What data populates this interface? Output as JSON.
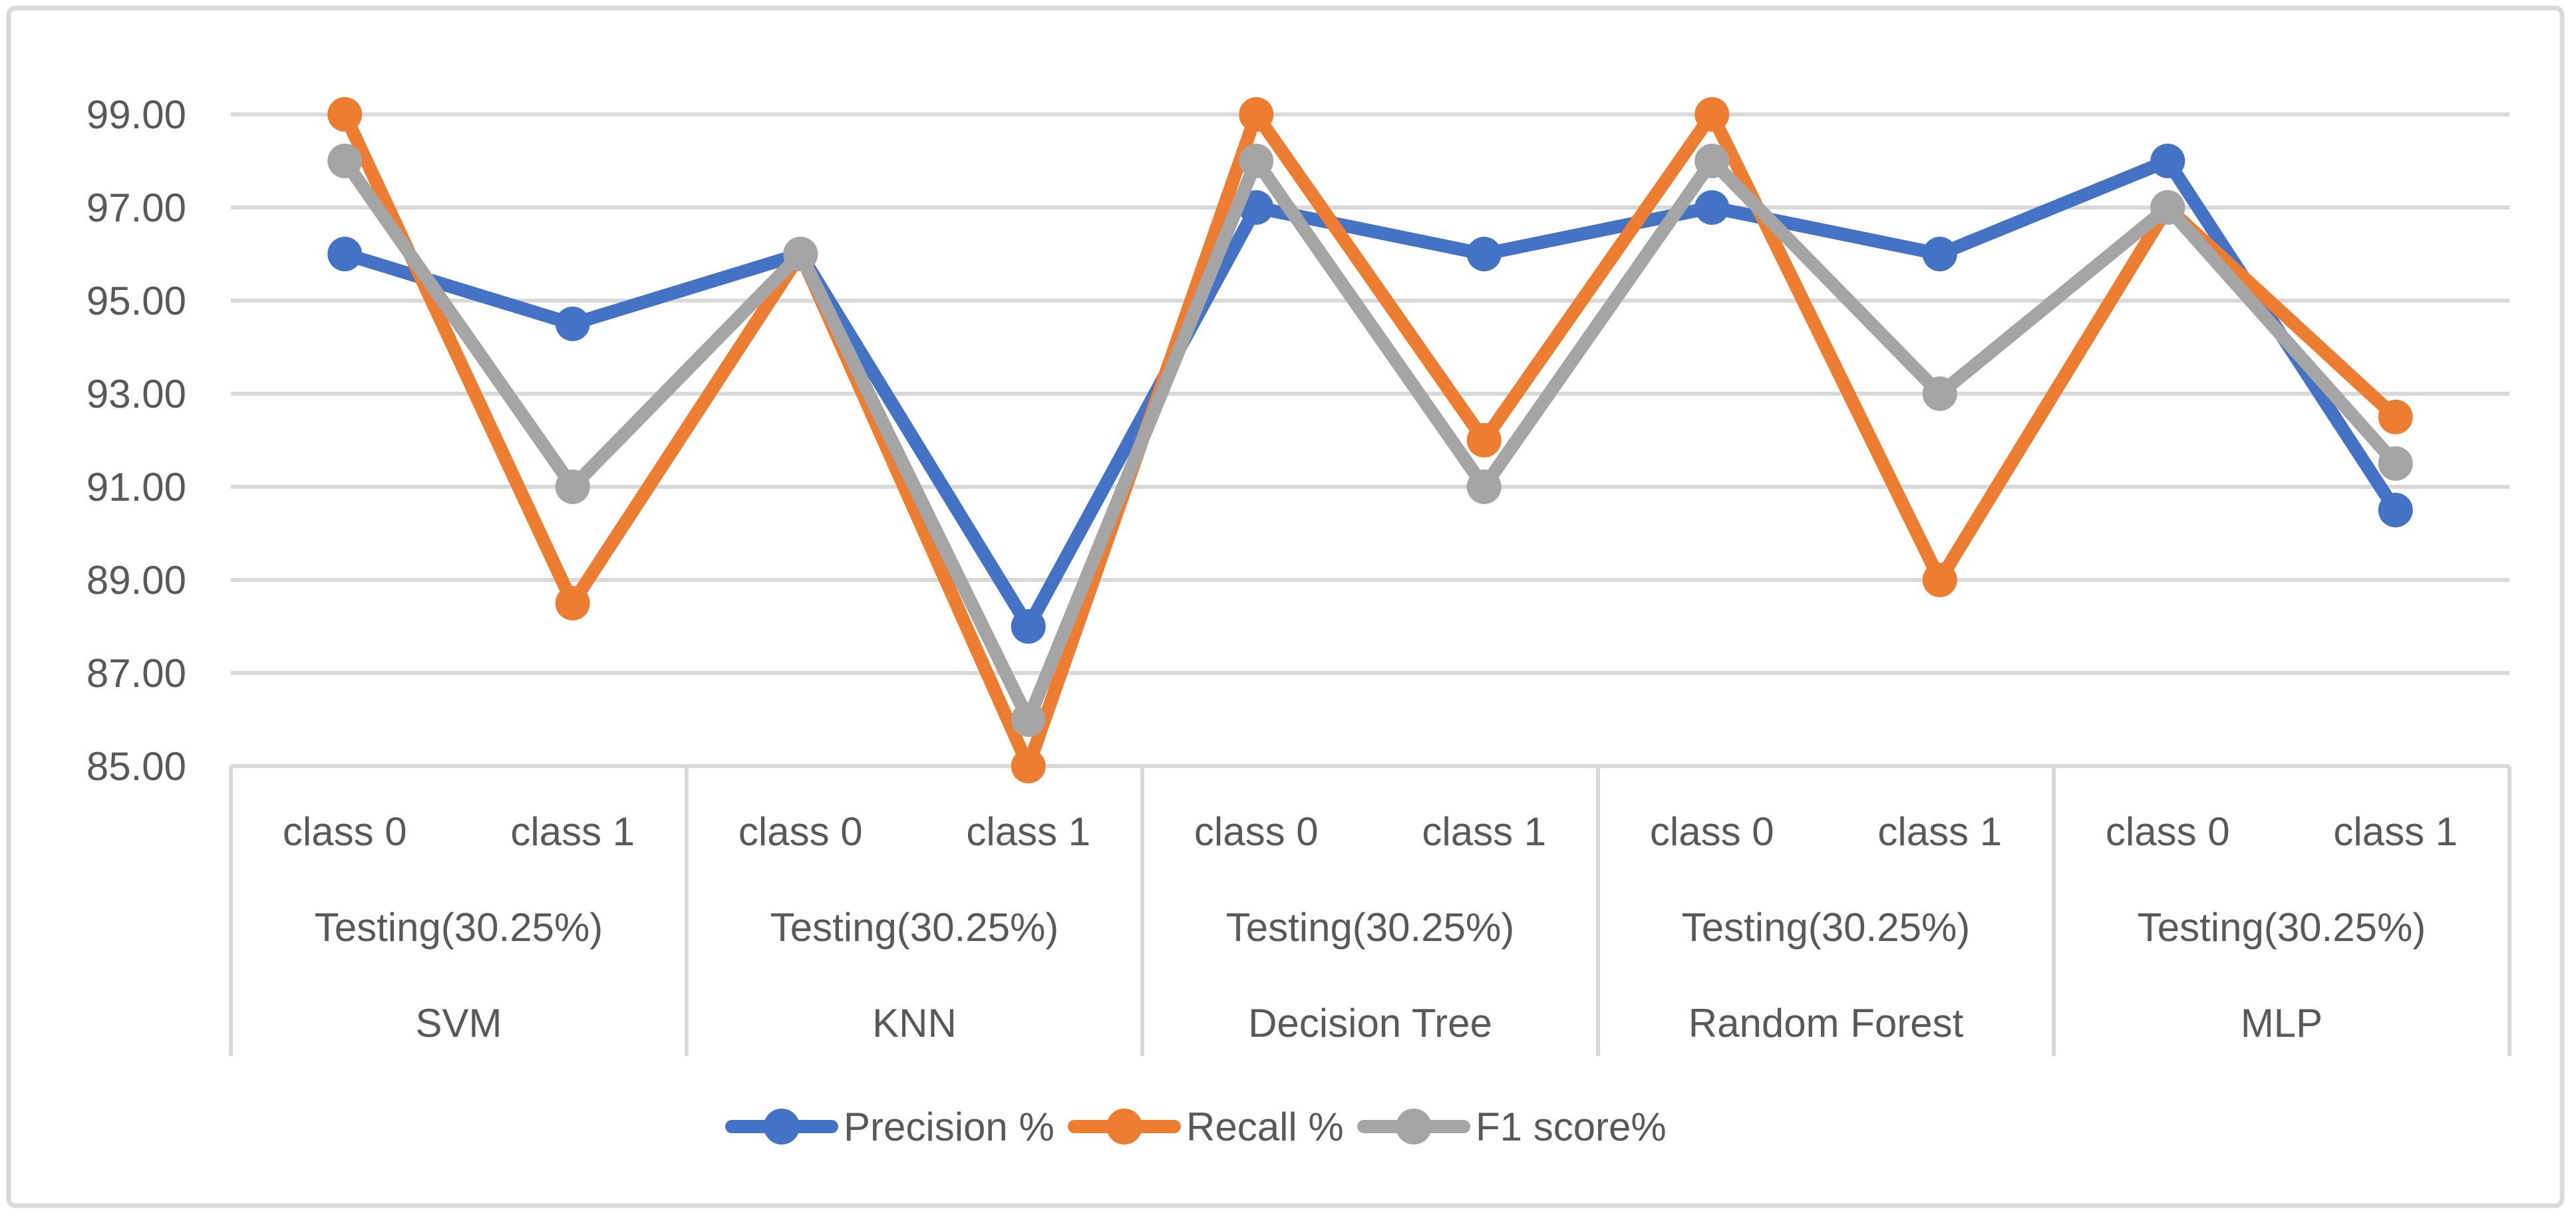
{
  "chart_data": {
    "type": "line",
    "title": "",
    "xlabel": "",
    "ylabel": "",
    "grid": true,
    "legend_position": "bottom",
    "y_axis": {
      "min": 85,
      "max": 99,
      "step": 2,
      "tick_labels": [
        "85.00",
        "87.00",
        "89.00",
        "91.00",
        "93.00",
        "95.00",
        "97.00",
        "99.00"
      ]
    },
    "x_axis": {
      "class_labels": [
        "class 0",
        "class 1"
      ],
      "groups": [
        {
          "label": "SVM",
          "sublabel": "Testing(30.25%)"
        },
        {
          "label": "KNN",
          "sublabel": "Testing(30.25%)"
        },
        {
          "label": "Decision Tree",
          "sublabel": "Testing(30.25%)"
        },
        {
          "label": "Random Forest",
          "sublabel": "Testing(30.25%)"
        },
        {
          "label": "MLP",
          "sublabel": "Testing(30.25%)"
        }
      ]
    },
    "categories": [
      "SVM class 0",
      "SVM class 1",
      "KNN class 0",
      "KNN class 1",
      "Decision Tree class 0",
      "Decision Tree class 1",
      "Random Forest class 0",
      "Random Forest class 1",
      "MLP class 0",
      "MLP class 1"
    ],
    "series": [
      {
        "name": "Precision %",
        "color": "#4472C4",
        "values": [
          96,
          94.5,
          96,
          88,
          97,
          96,
          97,
          96,
          98,
          90.5
        ]
      },
      {
        "name": "Recall %",
        "color": "#ED7D31",
        "values": [
          99,
          88.5,
          96,
          85,
          99,
          92,
          99,
          89,
          97,
          92.5
        ]
      },
      {
        "name": "F1 score%",
        "color": "#A5A5A5",
        "values": [
          98,
          91,
          96,
          86,
          98,
          91,
          98,
          93,
          97,
          91.5
        ]
      }
    ]
  },
  "colors": {
    "accent_blue": "#4472C4",
    "accent_orange": "#ED7D31",
    "accent_gray": "#A5A5A5",
    "text": "#595959",
    "gridline": "#D9D9D9",
    "frame_border": "#D9D9D9",
    "background": "#FFFFFF"
  }
}
